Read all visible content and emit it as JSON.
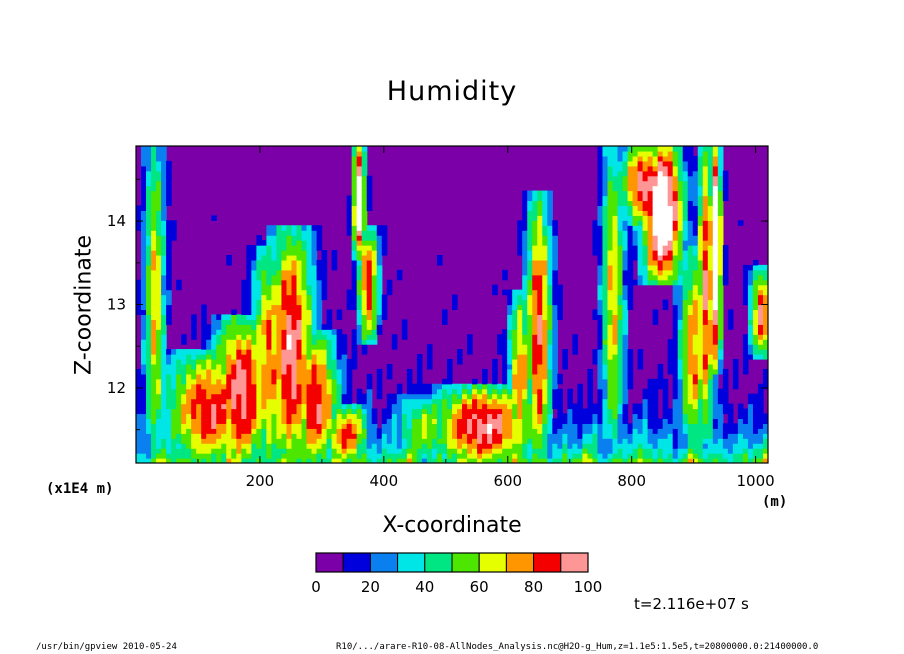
{
  "chart_data": {
    "type": "heatmap",
    "title": "Humidity",
    "xlabel": "X-coordinate",
    "ylabel": "Z-coordinate",
    "x_unit": "(m)",
    "y_scale_label": "(x1E4 m)",
    "xlim": [
      0,
      1020
    ],
    "ylim": [
      11.1,
      14.9
    ],
    "x_ticks": [
      200,
      400,
      600,
      800,
      1000
    ],
    "x_tick_labels": [
      "200",
      "400",
      "600",
      "800",
      "1000"
    ],
    "y_ticks": [
      12,
      13,
      14
    ],
    "y_tick_labels": [
      "12",
      "13",
      "14"
    ],
    "colorbar": {
      "levels": [
        0,
        10,
        20,
        30,
        40,
        50,
        60,
        70,
        80,
        90,
        100
      ],
      "labels": [
        "0",
        "20",
        "40",
        "60",
        "80",
        "100"
      ],
      "colors": [
        "#7b00a8",
        "#0000dc",
        "#0a80f0",
        "#00e6e6",
        "#00e682",
        "#4ce600",
        "#e6ff00",
        "#ff9600",
        "#f50000",
        "#ff9696"
      ],
      "above_color": "#ffffff"
    },
    "features": [
      {
        "x": 30,
        "z0": 11.1,
        "z1": 14.9,
        "w": 18,
        "peak": 70
      },
      {
        "x": 120,
        "z0": 11.1,
        "z1": 12.4,
        "w": 80,
        "peak": 88
      },
      {
        "x": 170,
        "z0": 11.1,
        "z1": 12.8,
        "w": 50,
        "peak": 96
      },
      {
        "x": 215,
        "z0": 11.1,
        "z1": 13.6,
        "w": 30,
        "peak": 80
      },
      {
        "x": 250,
        "z0": 11.1,
        "z1": 13.8,
        "w": 40,
        "peak": 96
      },
      {
        "x": 290,
        "z0": 11.1,
        "z1": 12.6,
        "w": 40,
        "peak": 90
      },
      {
        "x": 340,
        "z0": 11.1,
        "z1": 11.8,
        "w": 40,
        "peak": 82
      },
      {
        "x": 360,
        "z0": 13.6,
        "z1": 14.9,
        "w": 10,
        "peak": 120
      },
      {
        "x": 375,
        "z0": 12.6,
        "z1": 13.9,
        "w": 18,
        "peak": 88
      },
      {
        "x": 470,
        "z0": 11.1,
        "z1": 11.9,
        "w": 60,
        "peak": 60
      },
      {
        "x": 560,
        "z0": 11.1,
        "z1": 12.0,
        "w": 90,
        "peak": 96
      },
      {
        "x": 620,
        "z0": 11.1,
        "z1": 13.1,
        "w": 20,
        "peak": 78
      },
      {
        "x": 650,
        "z0": 11.1,
        "z1": 14.2,
        "w": 22,
        "peak": 90
      },
      {
        "x": 770,
        "z0": 11.3,
        "z1": 14.9,
        "w": 20,
        "peak": 70
      },
      {
        "x": 820,
        "z0": 14.0,
        "z1": 14.9,
        "w": 40,
        "peak": 96
      },
      {
        "x": 850,
        "z0": 13.3,
        "z1": 14.9,
        "w": 35,
        "peak": 120
      },
      {
        "x": 900,
        "z0": 11.3,
        "z1": 13.6,
        "w": 25,
        "peak": 78
      },
      {
        "x": 920,
        "z0": 11.5,
        "z1": 14.9,
        "w": 15,
        "peak": 90
      },
      {
        "x": 935,
        "z0": 12.3,
        "z1": 14.9,
        "w": 10,
        "peak": 120
      },
      {
        "x": 1010,
        "z0": 12.4,
        "z1": 13.4,
        "w": 20,
        "peak": 88
      }
    ]
  },
  "time_label": "t=2.116e+07 s",
  "footer": {
    "left": "/usr/bin/gpview   2010-05-24",
    "right": "R10/.../arare-R10-08-AllNodes_Analysis.nc@H2O-g_Hum,z=1.1e5:1.5e5,t=20800000.0:21400000.0"
  }
}
